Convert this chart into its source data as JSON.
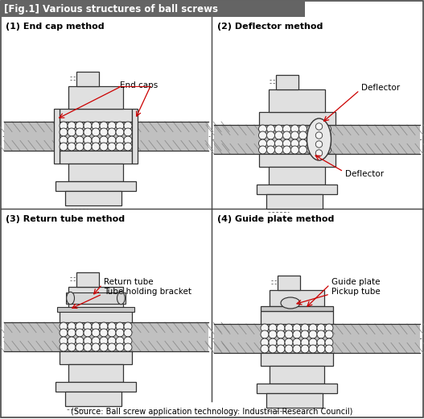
{
  "title": "[Fig.1] Various structures of ball screws",
  "title_bg": "#646464",
  "title_color": "#ffffff",
  "source_text": "(Source: Ball screw application technology: Industrial Research Council)",
  "line_color": "#333333",
  "red_color": "#cc0000",
  "bg_color": "#ffffff",
  "border_color": "#444444",
  "shaft_fill": "#c0c0c0",
  "nut_fill": "#e0e0e0",
  "thread_color": "#888888",
  "ball_fill": "#f5f5f5",
  "panel1_label": "(1) End cap method",
  "panel2_label": "(2) Deflector method",
  "panel3_label": "(3) Return tube method",
  "panel4_label": "(4) Guide plate method",
  "endcaps_text": "End caps",
  "deflector_text": "Deflector",
  "return_tube_text": "Return tube",
  "tube_bracket_text": "Tube holding bracket",
  "guide_plate_text": "Guide plate",
  "pickup_tube_text": "Pickup tube"
}
